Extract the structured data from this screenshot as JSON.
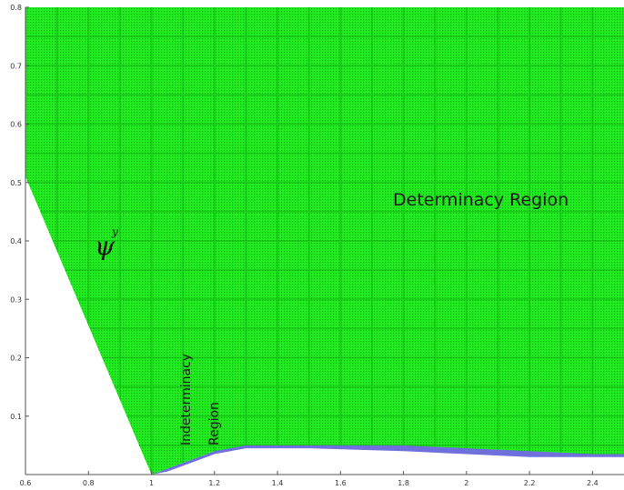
{
  "chart_data": {
    "type": "scatter",
    "title": "",
    "xlabel": "",
    "ylabel_symbol": "ψ",
    "ylabel_sub": "y",
    "xlim": [
      0.6,
      2.5
    ],
    "ylim": [
      0,
      0.8
    ],
    "grid": false,
    "x_ticks": [
      "0.6",
      "0.8",
      "1",
      "1.2",
      "1.4",
      "1.6",
      "1.8",
      "2",
      "2.2",
      "2.4"
    ],
    "y_ticks": [
      "0.1",
      "0.2",
      "0.3",
      "0.4",
      "0.5",
      "0.6",
      "0.7",
      "0.8"
    ],
    "colors": {
      "determinacy": "#19e619",
      "blue_points": "#2222cc",
      "indeterminacy": "#ffffff"
    },
    "determinacy_lower_boundary": [
      {
        "x": 0.6,
        "y": 0.51
      },
      {
        "x": 1.0,
        "y": 0.0
      },
      {
        "x": 1.05,
        "y": 0.01
      },
      {
        "x": 1.1,
        "y": 0.02
      },
      {
        "x": 1.15,
        "y": 0.03
      },
      {
        "x": 1.2,
        "y": 0.04
      },
      {
        "x": 1.25,
        "y": 0.045
      },
      {
        "x": 1.3,
        "y": 0.05
      },
      {
        "x": 1.4,
        "y": 0.05
      },
      {
        "x": 1.6,
        "y": 0.05
      },
      {
        "x": 1.8,
        "y": 0.05
      },
      {
        "x": 2.0,
        "y": 0.045
      },
      {
        "x": 2.2,
        "y": 0.04
      },
      {
        "x": 2.4,
        "y": 0.035
      },
      {
        "x": 2.5,
        "y": 0.035
      }
    ],
    "blue_series_boundary": [
      {
        "x": 1.0,
        "y": 0.0
      },
      {
        "x": 1.05,
        "y": 0.005
      },
      {
        "x": 1.1,
        "y": 0.015
      },
      {
        "x": 1.15,
        "y": 0.025
      },
      {
        "x": 1.2,
        "y": 0.035
      },
      {
        "x": 1.3,
        "y": 0.045
      },
      {
        "x": 1.5,
        "y": 0.045
      },
      {
        "x": 1.8,
        "y": 0.04
      },
      {
        "x": 2.0,
        "y": 0.035
      },
      {
        "x": 2.2,
        "y": 0.03
      },
      {
        "x": 2.5,
        "y": 0.03
      }
    ],
    "annotations": {
      "determinacy": "Determinacy Region",
      "indeterminacy_line1": "Indeterminacy",
      "indeterminacy_line2": "Region"
    }
  }
}
